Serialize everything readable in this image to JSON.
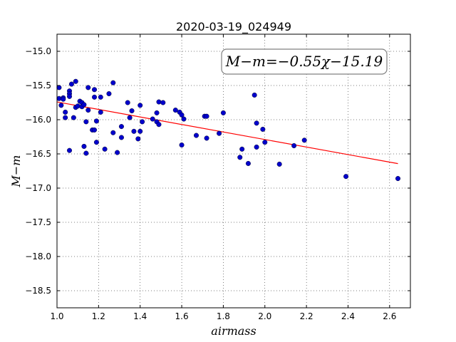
{
  "chart_data": {
    "type": "scatter",
    "title": "2020-03-19_024949",
    "xlabel": "airmass",
    "ylabel": "M−m",
    "xlim": [
      1.0,
      2.7
    ],
    "ylim": [
      -18.75,
      -14.75
    ],
    "xticks": [
      1.0,
      1.2,
      1.4,
      1.6,
      1.8,
      2.0,
      2.2,
      2.4,
      2.6
    ],
    "xtick_labels": [
      "1.0",
      "1.2",
      "1.4",
      "1.6",
      "1.8",
      "2.0",
      "2.2",
      "2.4",
      "2.6"
    ],
    "yticks": [
      -15.0,
      -15.5,
      -16.0,
      -16.5,
      -17.0,
      -17.5,
      -18.0,
      -18.5
    ],
    "ytick_labels": [
      "−15.0",
      "−15.5",
      "−16.0",
      "−16.5",
      "−17.0",
      "−17.5",
      "−18.0",
      "−18.5"
    ],
    "grid": true,
    "annotation": "M−m=−0.55χ−15.19",
    "fit": {
      "slope": -0.55,
      "intercept": -15.19,
      "x_range": [
        1.0,
        2.64
      ],
      "color": "#ff0000"
    },
    "point_color": "#0000cc",
    "points": [
      [
        1.01,
        -15.53
      ],
      [
        1.01,
        -15.69
      ],
      [
        1.02,
        -15.79
      ],
      [
        1.03,
        -15.68
      ],
      [
        1.03,
        -15.7
      ],
      [
        1.04,
        -15.89
      ],
      [
        1.04,
        -15.97
      ],
      [
        1.06,
        -15.58
      ],
      [
        1.06,
        -15.62
      ],
      [
        1.06,
        -15.66
      ],
      [
        1.06,
        -16.45
      ],
      [
        1.07,
        -15.48
      ],
      [
        1.08,
        -15.97
      ],
      [
        1.09,
        -15.44
      ],
      [
        1.09,
        -15.82
      ],
      [
        1.1,
        -15.8
      ],
      [
        1.11,
        -15.73
      ],
      [
        1.12,
        -15.75
      ],
      [
        1.12,
        -15.81
      ],
      [
        1.13,
        -15.78
      ],
      [
        1.13,
        -16.39
      ],
      [
        1.14,
        -16.03
      ],
      [
        1.14,
        -16.49
      ],
      [
        1.15,
        -15.53
      ],
      [
        1.15,
        -15.86
      ],
      [
        1.17,
        -16.15
      ],
      [
        1.18,
        -15.56
      ],
      [
        1.18,
        -15.67
      ],
      [
        1.18,
        -16.15
      ],
      [
        1.19,
        -16.02
      ],
      [
        1.19,
        -16.33
      ],
      [
        1.21,
        -15.67
      ],
      [
        1.21,
        -15.89
      ],
      [
        1.23,
        -16.43
      ],
      [
        1.25,
        -15.62
      ],
      [
        1.27,
        -15.46
      ],
      [
        1.27,
        -16.19
      ],
      [
        1.29,
        -16.48
      ],
      [
        1.31,
        -16.1
      ],
      [
        1.31,
        -16.26
      ],
      [
        1.34,
        -15.75
      ],
      [
        1.35,
        -15.97
      ],
      [
        1.36,
        -15.87
      ],
      [
        1.37,
        -16.17
      ],
      [
        1.39,
        -16.28
      ],
      [
        1.4,
        -15.79
      ],
      [
        1.4,
        -16.17
      ],
      [
        1.41,
        -16.03
      ],
      [
        1.46,
        -15.99
      ],
      [
        1.48,
        -15.9
      ],
      [
        1.48,
        -16.03
      ],
      [
        1.49,
        -15.74
      ],
      [
        1.49,
        -16.07
      ],
      [
        1.51,
        -15.75
      ],
      [
        1.57,
        -15.86
      ],
      [
        1.59,
        -15.89
      ],
      [
        1.6,
        -15.93
      ],
      [
        1.6,
        -16.37
      ],
      [
        1.61,
        -15.99
      ],
      [
        1.67,
        -16.23
      ],
      [
        1.71,
        -15.95
      ],
      [
        1.72,
        -15.95
      ],
      [
        1.72,
        -16.27
      ],
      [
        1.78,
        -16.2
      ],
      [
        1.8,
        -15.9
      ],
      [
        1.88,
        -16.55
      ],
      [
        1.89,
        -16.43
      ],
      [
        1.92,
        -16.64
      ],
      [
        1.95,
        -15.64
      ],
      [
        1.96,
        -16.05
      ],
      [
        1.96,
        -16.4
      ],
      [
        1.99,
        -16.14
      ],
      [
        2.0,
        -16.33
      ],
      [
        2.07,
        -16.65
      ],
      [
        2.14,
        -16.38
      ],
      [
        2.19,
        -16.3
      ],
      [
        2.39,
        -16.83
      ],
      [
        2.64,
        -16.86
      ]
    ]
  }
}
